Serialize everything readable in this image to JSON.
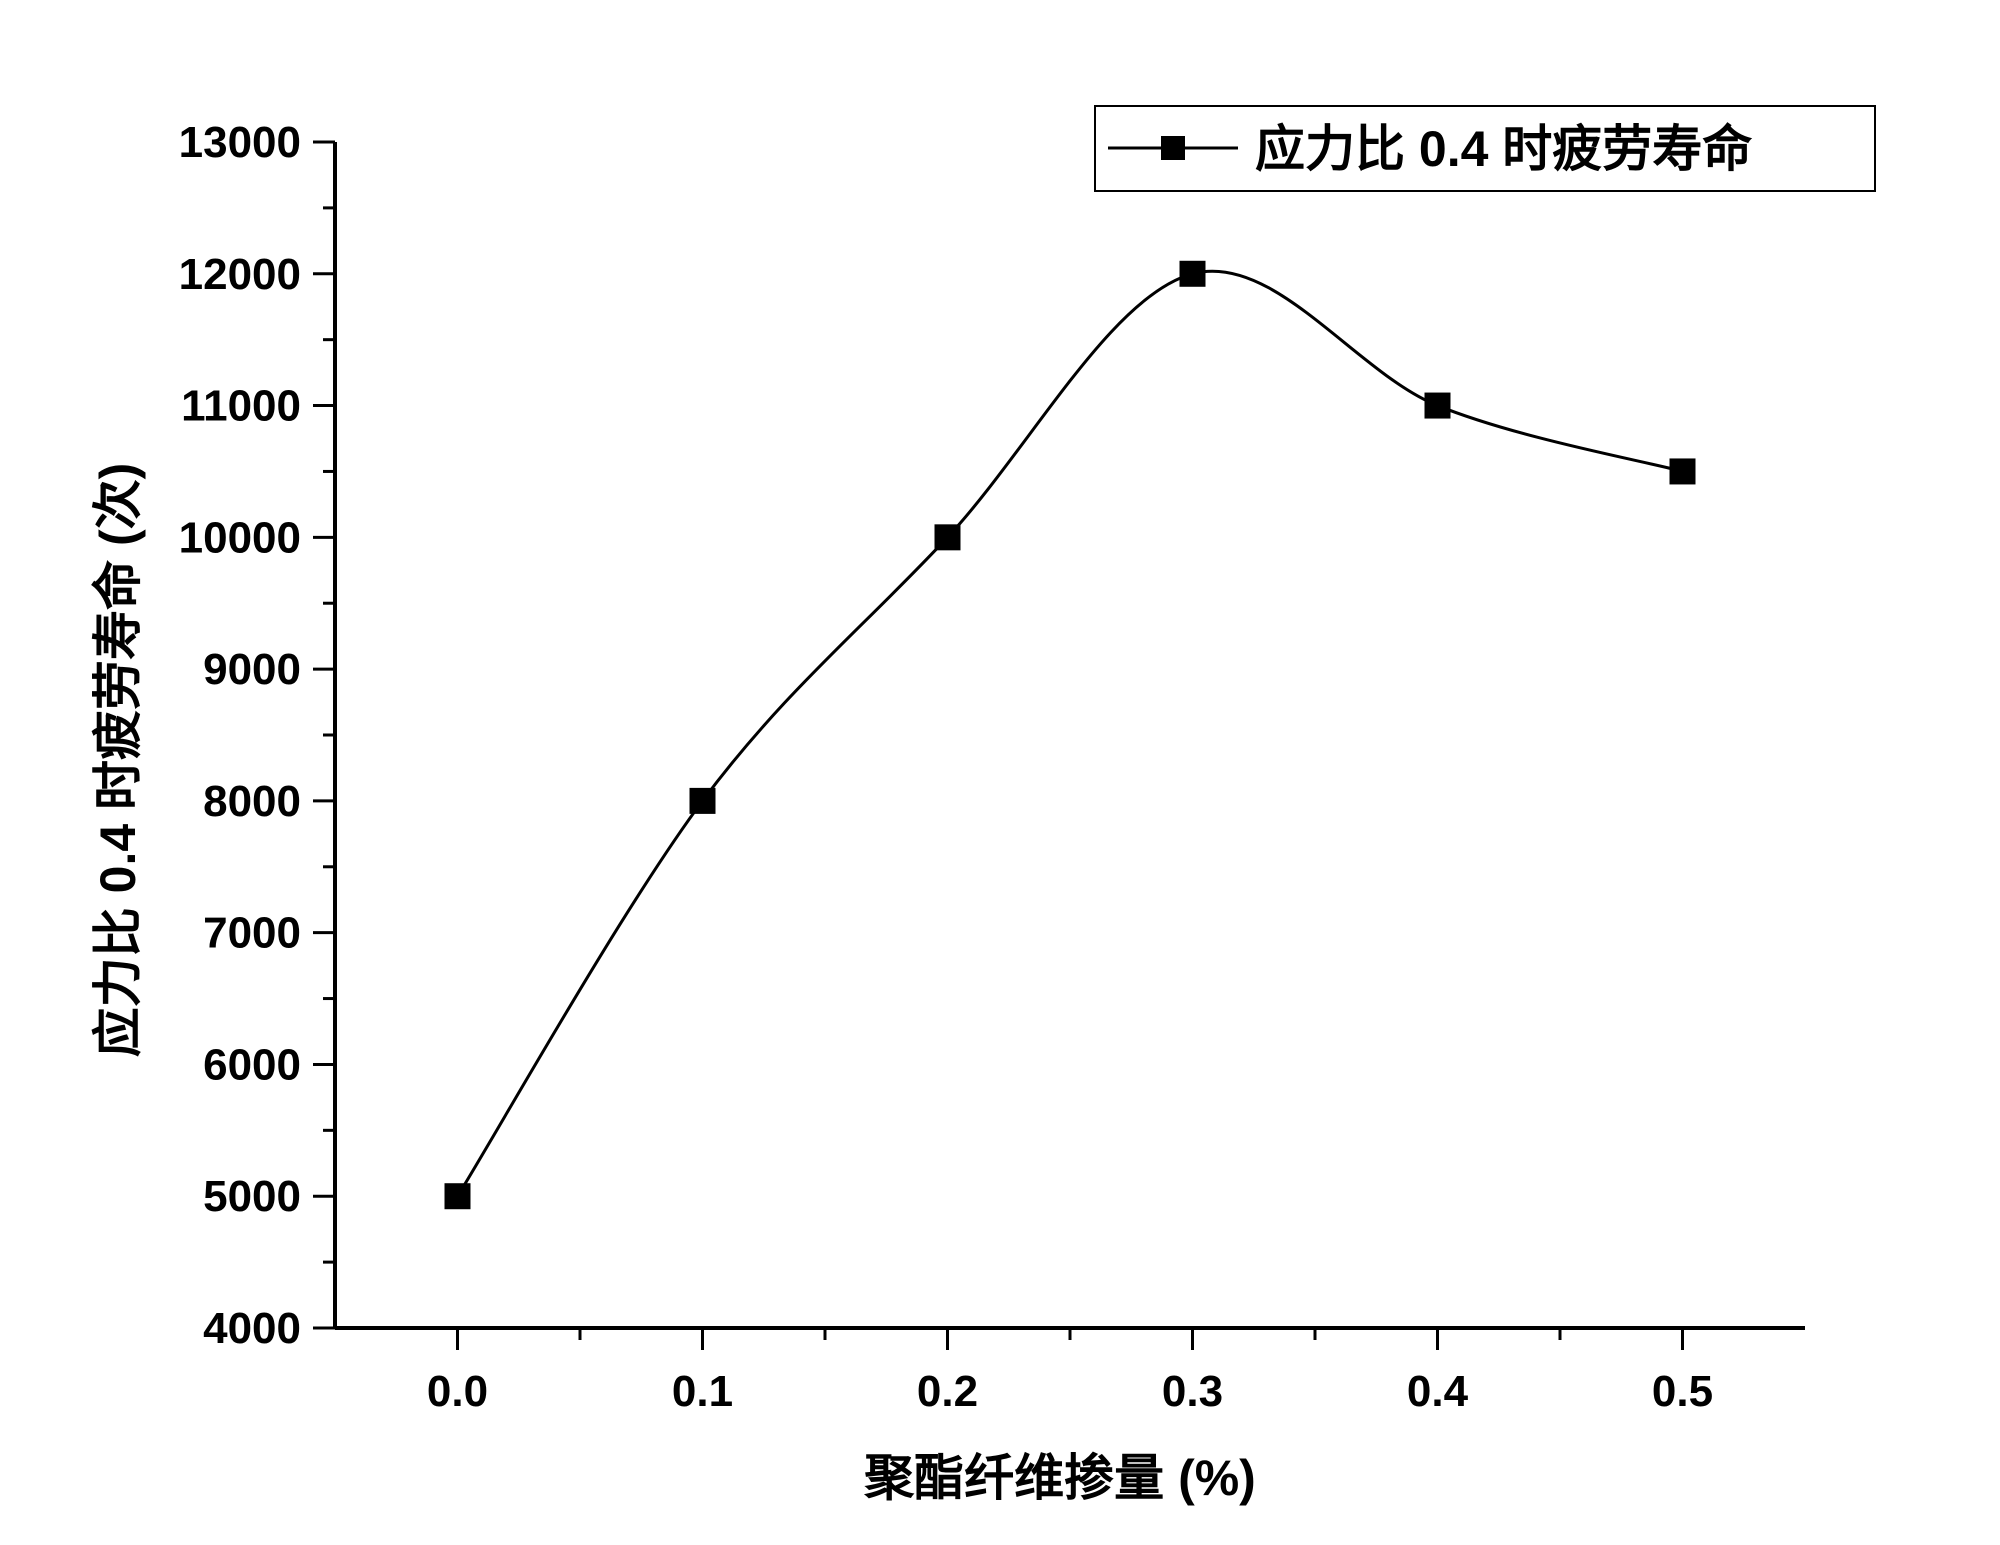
{
  "chart_data": {
    "type": "line",
    "title": "",
    "xlabel": "聚酯纤维掺量 (%)",
    "ylabel": "应力比 0.4 时疲劳寿命 (次)",
    "xlim": [
      -0.05,
      0.55
    ],
    "ylim": [
      4000,
      13000
    ],
    "x_ticks": [
      0.0,
      0.1,
      0.2,
      0.3,
      0.4,
      0.5
    ],
    "x_tick_labels": [
      "0.0",
      "0.1",
      "0.2",
      "0.3",
      "0.4",
      "0.5"
    ],
    "y_ticks": [
      4000,
      5000,
      6000,
      7000,
      8000,
      9000,
      10000,
      11000,
      12000,
      13000
    ],
    "y_tick_labels": [
      "4000",
      "5000",
      "6000",
      "7000",
      "8000",
      "9000",
      "10000",
      "11000",
      "12000",
      "13000"
    ],
    "grid": false,
    "legend_position": "top-right",
    "series": [
      {
        "name": "应力比 0.4 时疲劳寿命",
        "marker": "square",
        "smooth": true,
        "color": "#000000",
        "x": [
          0.0,
          0.1,
          0.2,
          0.3,
          0.4,
          0.5
        ],
        "y": [
          5000,
          8000,
          10000,
          12000,
          11000,
          10500
        ]
      }
    ]
  }
}
